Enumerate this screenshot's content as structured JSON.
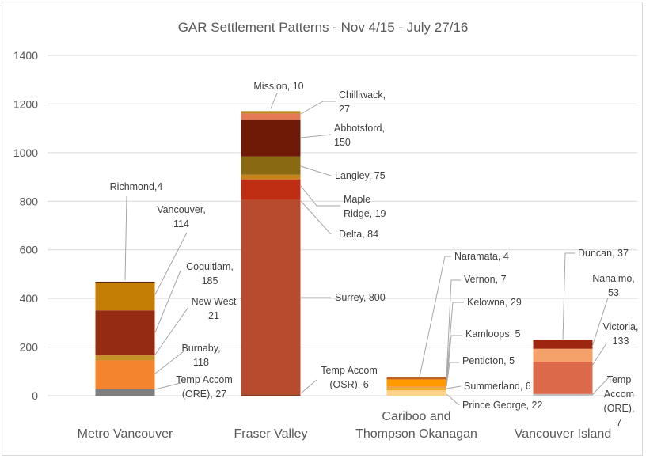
{
  "chart_data": {
    "type": "bar",
    "stacked": true,
    "title": "GAR Settlement Patterns -  Nov 4/15 - July 27/16",
    "xlabel": "",
    "ylabel": "",
    "ylim": [
      0,
      1400
    ],
    "yticks": [
      "0",
      "200",
      "400",
      "600",
      "800",
      "1000",
      "1200",
      "1400"
    ],
    "ytick_values": [
      0,
      200,
      400,
      600,
      800,
      1000,
      1200,
      1400
    ],
    "grid": true,
    "legend": "none",
    "categories": [
      {
        "label_lines": [
          "Metro Vancouver"
        ]
      },
      {
        "label_lines": [
          "Fraser Valley"
        ]
      },
      {
        "label_lines": [
          "Cariboo and",
          "Thompson Okanagan"
        ]
      },
      {
        "label_lines": [
          "Vancouver Island"
        ]
      }
    ],
    "stacks": [
      {
        "category": "Metro Vancouver",
        "segments": [
          {
            "name": "Temp Accom (ORE)",
            "value": 27,
            "color": "#7f7f7f",
            "label_lines": [
              "Temp Accom",
              "(ORE), 27"
            ]
          },
          {
            "name": "Burnaby",
            "value": 118,
            "color": "#f4852e",
            "label_lines": [
              "Burnaby,",
              "118"
            ]
          },
          {
            "name": "New West",
            "value": 21,
            "color": "#c8902a",
            "label_lines": [
              "New West",
              "21"
            ]
          },
          {
            "name": "Coquitlam",
            "value": 185,
            "color": "#952b12",
            "label_lines": [
              "Coquitlam,",
              "185"
            ]
          },
          {
            "name": "Vancouver",
            "value": 114,
            "color": "#c47e06",
            "label_lines": [
              "Vancouver,",
              "114"
            ]
          },
          {
            "name": "Richmond",
            "value": 4,
            "color": "#5c2c0c",
            "label_lines": [
              "Richmond,4"
            ]
          }
        ]
      },
      {
        "category": "Fraser Valley",
        "segments": [
          {
            "name": "Temp Accom (OSR)",
            "value": 6,
            "color": "#8b3a1a",
            "label_lines": [
              "Temp Accom",
              "(OSR), 6"
            ]
          },
          {
            "name": "Surrey",
            "value": 800,
            "color": "#b84b2d",
            "label_lines": [
              "Surrey, 800"
            ]
          },
          {
            "name": "Delta",
            "value": 84,
            "color": "#bf2e12",
            "label_lines": [
              "Delta, 84"
            ]
          },
          {
            "name": "Maple Ridge",
            "value": 19,
            "color": "#c8841b",
            "label_lines": [
              "Maple",
              "Ridge, 19"
            ]
          },
          {
            "name": "Langley",
            "value": 75,
            "color": "#8a6a10",
            "label_lines": [
              "Langley, 75"
            ]
          },
          {
            "name": "Abbotsford",
            "value": 150,
            "color": "#6e1a06",
            "label_lines": [
              "Abbotsford,",
              "150"
            ]
          },
          {
            "name": "Chilliwack",
            "value": 27,
            "color": "#e57a55",
            "label_lines": [
              "Chilliwack,",
              "27"
            ]
          },
          {
            "name": "Mission",
            "value": 10,
            "color": "#b88a1c",
            "label_lines": [
              "Mission, 10"
            ]
          }
        ]
      },
      {
        "category": "Cariboo and Thompson Okanagan",
        "segments": [
          {
            "name": "Prince George",
            "value": 22,
            "color": "#ffd28a",
            "label_lines": [
              "Prince George, 22"
            ]
          },
          {
            "name": "Summerland",
            "value": 6,
            "color": "#f5a623",
            "label_lines": [
              "Summerland, 6"
            ]
          },
          {
            "name": "Penticton",
            "value": 5,
            "color": "#e8b32c",
            "label_lines": [
              "Penticton, 5"
            ]
          },
          {
            "name": "Kamloops",
            "value": 5,
            "color": "#f2923c",
            "label_lines": [
              "Kamloops, 5"
            ]
          },
          {
            "name": "Kelowna",
            "value": 29,
            "color": "#ff9a00",
            "label_lines": [
              "Kelowna, 29"
            ]
          },
          {
            "name": "Vernon",
            "value": 7,
            "color": "#c06020",
            "label_lines": [
              "Vernon, 7"
            ]
          },
          {
            "name": "Naramata",
            "value": 4,
            "color": "#8b3a10",
            "label_lines": [
              "Naramata, 4"
            ]
          }
        ]
      },
      {
        "category": "Vancouver Island",
        "segments": [
          {
            "name": "Temp Accom (ORE)",
            "value": 7,
            "color": "#c0c0c0",
            "label_lines": [
              "Temp",
              "Accom",
              "(ORE),",
              "7"
            ]
          },
          {
            "name": "Victoria",
            "value": 133,
            "color": "#dc6a4a",
            "label_lines": [
              "Victoria,",
              "133"
            ]
          },
          {
            "name": "Nanaimo",
            "value": 53,
            "color": "#f4a26a",
            "label_lines": [
              "Nanaimo,",
              "53"
            ]
          },
          {
            "name": "Duncan",
            "value": 37,
            "color": "#9e2510",
            "label_lines": [
              "Duncan, 37"
            ]
          }
        ]
      }
    ]
  }
}
